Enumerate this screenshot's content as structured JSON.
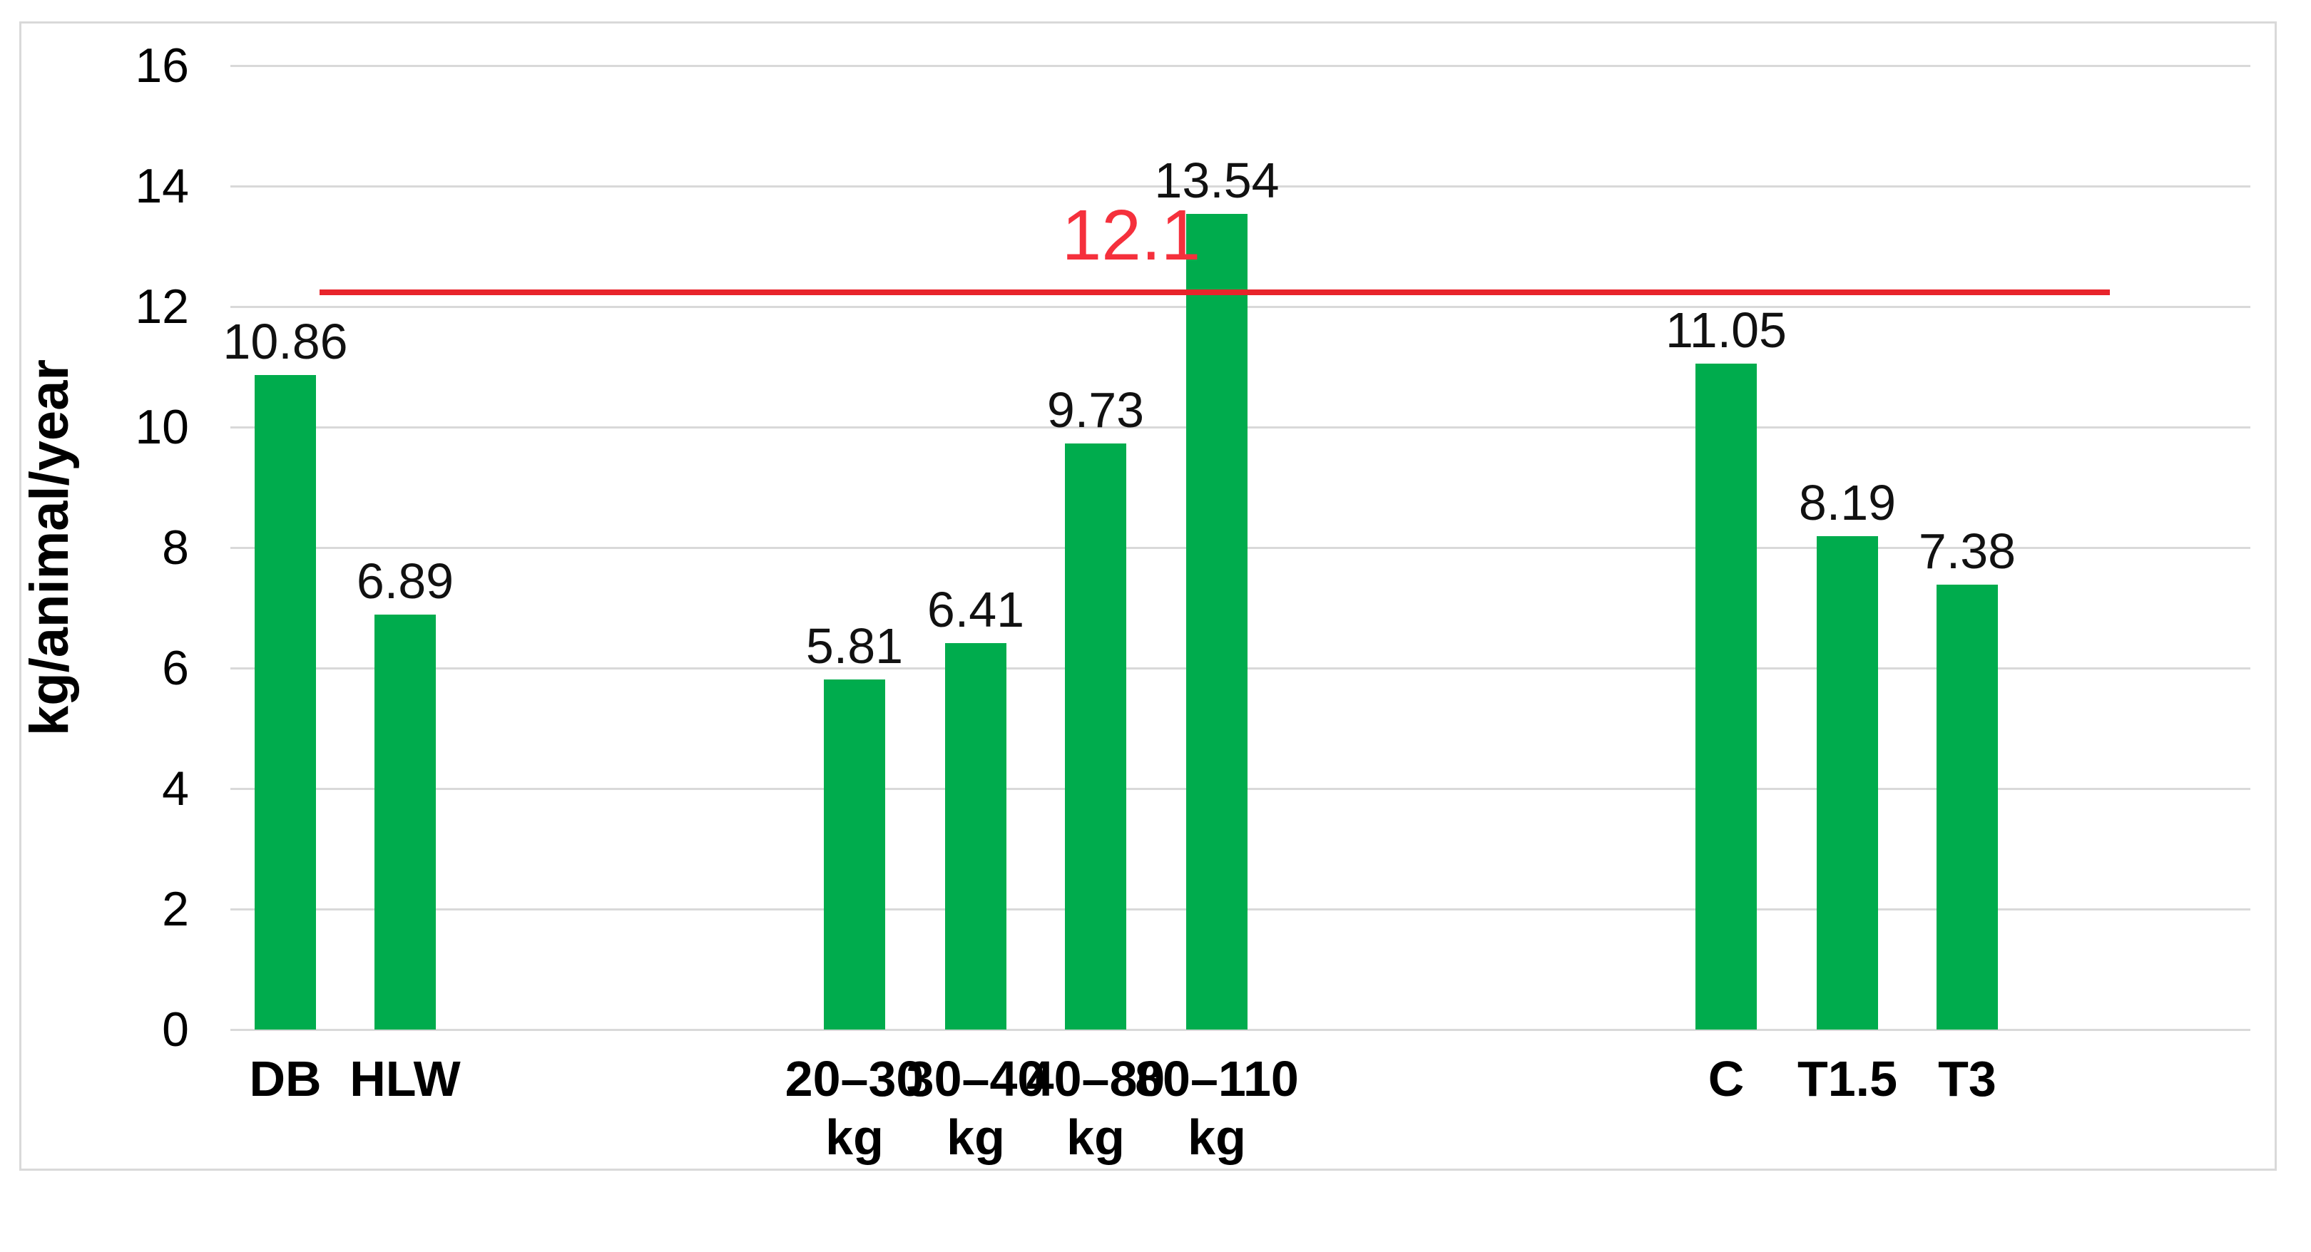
{
  "chart_data": {
    "type": "bar",
    "title": "",
    "xlabel": "",
    "ylabel": "kg/animal/year",
    "ylim": [
      0,
      16
    ],
    "yticks": [
      0,
      2,
      4,
      6,
      8,
      10,
      12,
      14,
      16
    ],
    "grid": "horizontal-light-gray",
    "legend": "none",
    "bar_color": "#00ac4d",
    "categories": [
      "DB",
      "HLW",
      "20–30 kg",
      "30–40 kg",
      "40–80 kg",
      "80–110 kg",
      "C",
      "T1.5",
      "T3"
    ],
    "values": [
      10.86,
      6.89,
      5.81,
      6.41,
      9.73,
      13.54,
      11.05,
      8.19,
      7.38
    ],
    "bars": [
      {
        "label_line1": "DB",
        "label_line2": "",
        "value": 10.86,
        "value_label": "10.86"
      },
      {
        "label_line1": "HLW",
        "label_line2": "",
        "value": 6.89,
        "value_label": "6.89"
      },
      {
        "label_line1": "20–30",
        "label_line2": "kg",
        "value": 5.81,
        "value_label": "5.81"
      },
      {
        "label_line1": "30–40",
        "label_line2": "kg",
        "value": 6.41,
        "value_label": "6.41"
      },
      {
        "label_line1": "40–80",
        "label_line2": "kg",
        "value": 9.73,
        "value_label": "9.73"
      },
      {
        "label_line1": "80–110",
        "label_line2": "kg",
        "value": 13.54,
        "value_label": "13.54"
      },
      {
        "label_line1": "C",
        "label_line2": "",
        "value": 11.05,
        "value_label": "11.05"
      },
      {
        "label_line1": "T1.5",
        "label_line2": "",
        "value": 8.19,
        "value_label": "8.19"
      },
      {
        "label_line1": "T3",
        "label_line2": "",
        "value": 7.38,
        "value_label": "7.38"
      }
    ],
    "reference_line": {
      "value": 12.1,
      "label": "12.1",
      "line_color": "#e8242b",
      "label_color": "#f5303c"
    }
  }
}
